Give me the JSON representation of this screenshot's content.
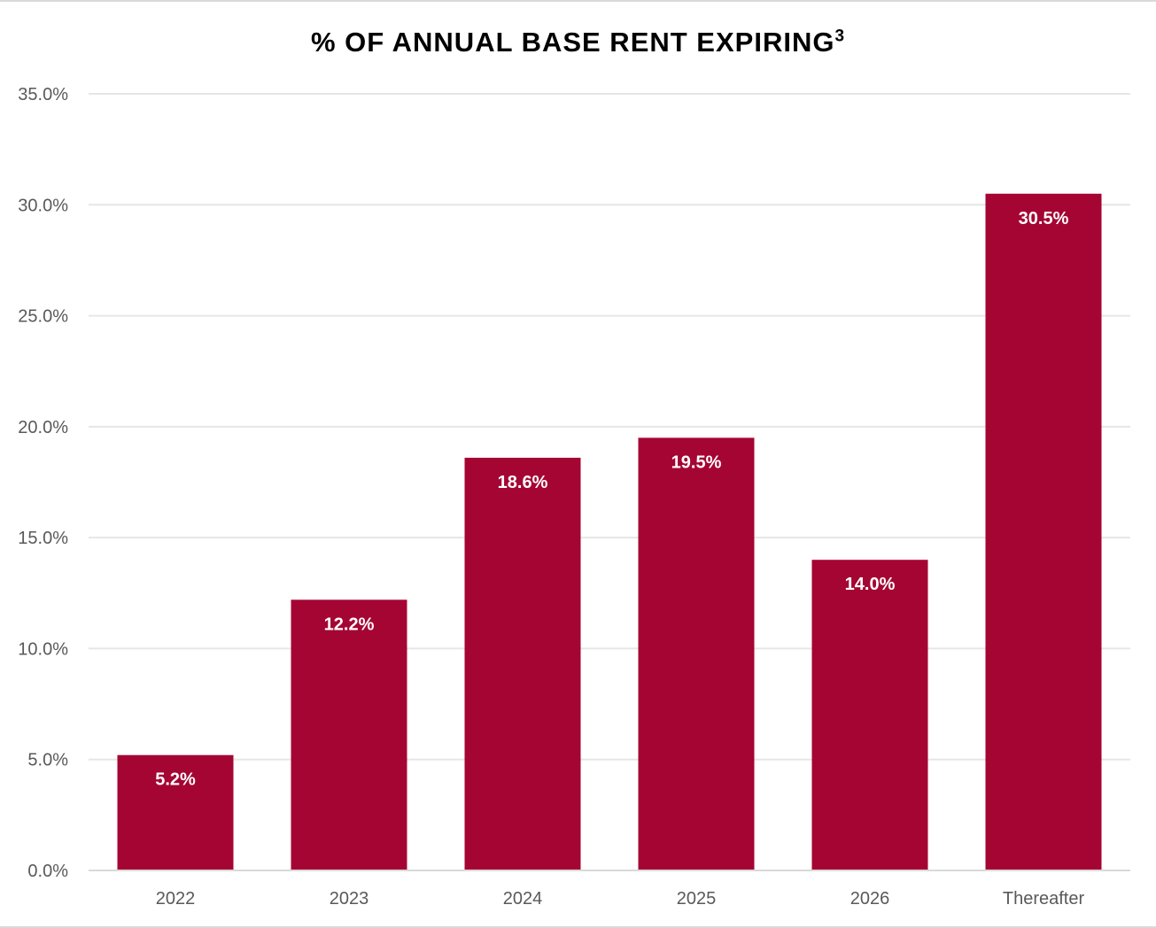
{
  "chart_data": {
    "type": "bar",
    "title": "% OF ANNUAL BASE RENT EXPIRING",
    "title_superscript": "3",
    "categories": [
      "2022",
      "2023",
      "2024",
      "2025",
      "2026",
      "Thereafter"
    ],
    "values": [
      5.2,
      12.2,
      18.6,
      19.5,
      14.0,
      30.5
    ],
    "data_labels": [
      "5.2%",
      "12.2%",
      "18.6%",
      "19.5%",
      "14.0%",
      "30.5%"
    ],
    "xlabel": "",
    "ylabel": "",
    "ylim": [
      0,
      35
    ],
    "yticks": [
      0,
      5,
      10,
      15,
      20,
      25,
      30,
      35
    ],
    "ytick_labels": [
      "0.0%",
      "5.0%",
      "10.0%",
      "15.0%",
      "20.0%",
      "25.0%",
      "30.0%",
      "35.0%"
    ],
    "grid": true,
    "legend": "none",
    "bar_color": "#a50533",
    "grid_color": "#e6e6e6",
    "axis_color": "#d9d9d9",
    "tick_label_color": "#595959",
    "data_label_color": "#ffffff"
  }
}
